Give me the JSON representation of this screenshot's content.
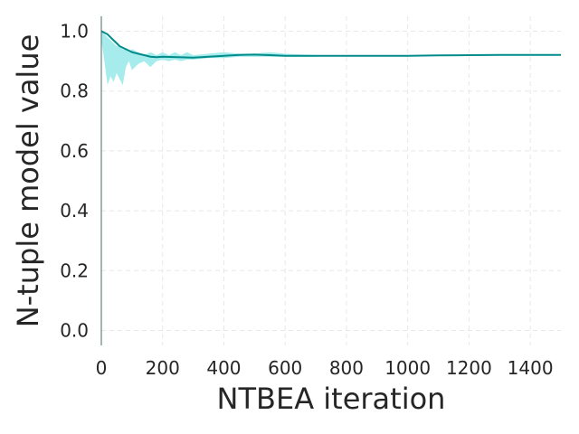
{
  "chart_data": {
    "type": "line",
    "title": "",
    "xlabel": "NTBEA iteration",
    "ylabel": "N-tuple model value",
    "xlim": [
      0,
      1500
    ],
    "ylim": [
      -0.05,
      1.05
    ],
    "x_ticks": [
      0,
      200,
      400,
      600,
      800,
      1000,
      1200,
      1400
    ],
    "x_tick_labels": [
      "0",
      "200",
      "400",
      "600",
      "800",
      "1000",
      "1200",
      "1400"
    ],
    "y_ticks": [
      0.0,
      0.2,
      0.4,
      0.6,
      0.8,
      1.0
    ],
    "y_tick_labels": [
      "0.0",
      "0.2",
      "0.4",
      "0.6",
      "0.8",
      "1.0"
    ],
    "grid": true,
    "legend": "none",
    "series": [
      {
        "role": "mean",
        "color": "#008b8b",
        "x": [
          0,
          20,
          40,
          60,
          80,
          100,
          120,
          140,
          160,
          180,
          200,
          250,
          300,
          350,
          400,
          450,
          500,
          550,
          600,
          700,
          800,
          900,
          1000,
          1100,
          1200,
          1300,
          1400,
          1500
        ],
        "y": [
          1.0,
          0.99,
          0.97,
          0.95,
          0.94,
          0.93,
          0.925,
          0.92,
          0.915,
          0.913,
          0.915,
          0.913,
          0.912,
          0.915,
          0.918,
          0.921,
          0.922,
          0.92,
          0.918,
          0.918,
          0.918,
          0.918,
          0.918,
          0.919,
          0.92,
          0.921,
          0.921,
          0.921
        ]
      },
      {
        "role": "band-upper",
        "color": "#a6ecec",
        "x": [
          0,
          10,
          20,
          30,
          40,
          50,
          60,
          70,
          80,
          90,
          100,
          120,
          140,
          160,
          180,
          200,
          220,
          240,
          260,
          280,
          300,
          350,
          400,
          450,
          500,
          550,
          600,
          700
        ],
        "y": [
          1.0,
          0.99,
          0.98,
          0.97,
          0.96,
          0.95,
          0.95,
          0.94,
          0.94,
          0.93,
          0.94,
          0.93,
          0.92,
          0.93,
          0.92,
          0.93,
          0.92,
          0.93,
          0.92,
          0.93,
          0.92,
          0.925,
          0.93,
          0.925,
          0.925,
          0.93,
          0.925,
          0.92
        ]
      },
      {
        "role": "band-lower",
        "color": "#a6ecec",
        "x": [
          0,
          10,
          20,
          30,
          40,
          50,
          60,
          70,
          80,
          90,
          100,
          120,
          140,
          160,
          180,
          200,
          220,
          240,
          260,
          280,
          300,
          350,
          400,
          450,
          500,
          550,
          600,
          700
        ],
        "y": [
          0.97,
          0.9,
          0.82,
          0.85,
          0.83,
          0.86,
          0.84,
          0.82,
          0.88,
          0.9,
          0.87,
          0.89,
          0.9,
          0.88,
          0.9,
          0.905,
          0.9,
          0.905,
          0.9,
          0.905,
          0.905,
          0.91,
          0.91,
          0.915,
          0.915,
          0.915,
          0.915,
          0.915
        ]
      }
    ]
  }
}
